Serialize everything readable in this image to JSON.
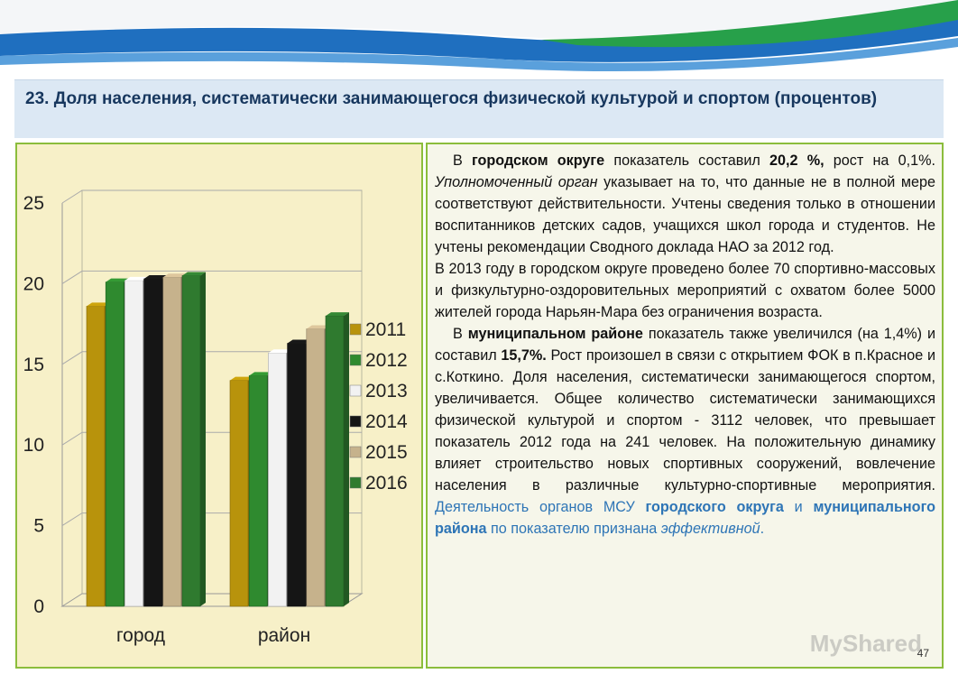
{
  "title": "23. Доля населения, систематически занимающегося физической культурой и спортом (процентов)",
  "chart_data": {
    "type": "bar",
    "categories": [
      "город",
      "район"
    ],
    "series": [
      {
        "name": "2011",
        "color": "#b8930c",
        "values": [
          18.6,
          14.0
        ]
      },
      {
        "name": "2012",
        "color": "#2f8a2f",
        "values": [
          20.1,
          14.3
        ]
      },
      {
        "name": "2013",
        "color": "#f2f2f2",
        "values": [
          20.2,
          15.7
        ]
      },
      {
        "name": "2014",
        "color": "#151515",
        "values": [
          20.3,
          16.3
        ]
      },
      {
        "name": "2015",
        "color": "#c6b28c",
        "values": [
          20.4,
          17.2
        ]
      },
      {
        "name": "2016",
        "color": "#2f7a2f",
        "values": [
          20.5,
          18.0
        ]
      }
    ],
    "yticks": [
      "0",
      "5",
      "10",
      "15",
      "20",
      "25"
    ],
    "ylim": [
      0,
      25
    ],
    "legend_position": "right"
  },
  "text_panel": {
    "p1": {
      "a": "В ",
      "b": "городском округе",
      "c": "  показатель составил ",
      "d": "20,2 %,",
      "e": " рост на 0,1%. ",
      "f": "Уполномоченный орган",
      "g": " указывает на то, что данные не в полной мере соответствуют действительности. Учтены сведения только в отношении воспитанников детских садов, учащихся школ города и студентов. Не учтены рекомендации Сводного доклада НАО за 2012 год."
    },
    "p2": "В 2013 году в городском округе проведено более 70 спортивно-массовых и физкультурно-оздоровительных мероприятий с охватом более 5000 жителей города Нарьян-Мара без ограничения возраста.",
    "p3": {
      "a": "В ",
      "b": "муниципальном районе",
      "c": " показатель также увеличился  (на 1,4%) и составил ",
      "d": "15,7%.",
      "e": " Рост произошел в связи с открытием ФОК в п.Красное и с.Коткино. Доля населения, систематически занимающегося спортом, увеличивается. Общее количество систематически занимающихся физической культурой и спортом - 3112 человек, что превышает показатель 2012 года на 241 человек. На положительную динамику влияет строительство новых спортивных сооружений, вовлечение населения в различные культурно-спортивные мероприятия. ",
      "f": "Деятельность органов МСУ ",
      "g": "городского округа",
      "h": " и ",
      "i": "муниципального района",
      "j": " по показателю признана ",
      "k": "эффективной",
      "l": "."
    },
    "page_number": "47",
    "watermark": "MyShared"
  }
}
